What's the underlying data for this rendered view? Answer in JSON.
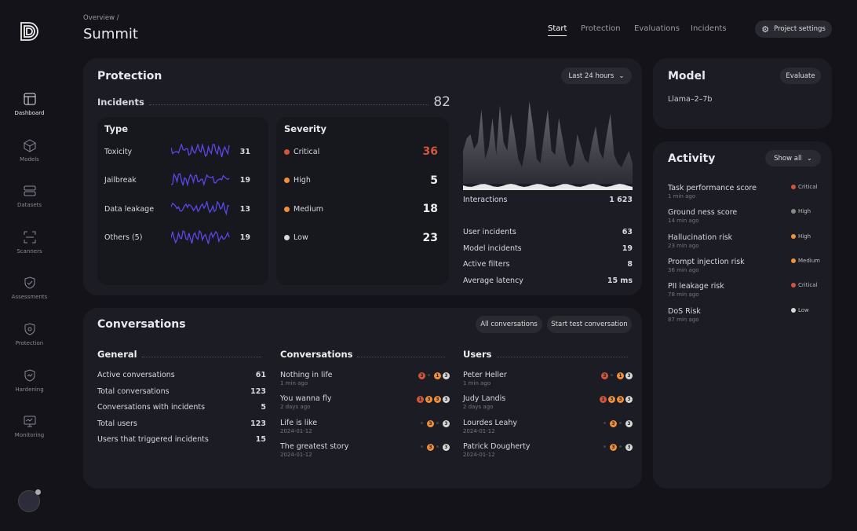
{
  "colors": {
    "critical": "#d0553a",
    "high": "#f0903a",
    "medium": "#f0903a",
    "low": "#d8d8d8",
    "grey": "#888"
  },
  "sidebar": {
    "items": [
      {
        "label": "Dashboard",
        "icon": "dashboard-icon"
      },
      {
        "label": "Models",
        "icon": "cube-icon"
      },
      {
        "label": "Datasets",
        "icon": "database-icon"
      },
      {
        "label": "Scanners",
        "icon": "scan-icon"
      },
      {
        "label": "Assessments",
        "icon": "shield-check-icon"
      },
      {
        "label": "Protection",
        "icon": "shield-icon"
      },
      {
        "label": "Hardening",
        "icon": "shield-bolt-icon"
      },
      {
        "label": "Monitoring",
        "icon": "monitor-icon"
      }
    ]
  },
  "header": {
    "breadcrumb": "Overview /",
    "title": "Summit",
    "tabs": [
      "Start",
      "Protection",
      "Evaluations",
      "Incidents"
    ],
    "settings": "Project settings"
  },
  "protection": {
    "title": "Protection",
    "range": "Last 24 hours",
    "incidents_label": "Incidents",
    "incidents_total": "82",
    "type_title": "Type",
    "types": [
      {
        "label": "Toxicity",
        "value": "31"
      },
      {
        "label": "Jailbreak",
        "value": "19"
      },
      {
        "label": "Data leakage",
        "value": "13"
      },
      {
        "label": "Others (5)",
        "value": "19"
      }
    ],
    "severity_title": "Severity",
    "severity": [
      {
        "label": "Critical",
        "value": "36",
        "level": "critical"
      },
      {
        "label": "High",
        "value": "5",
        "level": "high"
      },
      {
        "label": "Medium",
        "value": "18",
        "level": "medium"
      },
      {
        "label": "Low",
        "value": "23",
        "level": "low"
      }
    ],
    "interactions_label": "Interactions",
    "interactions": "1 623",
    "stats": [
      {
        "label": "User incidents",
        "value": "63"
      },
      {
        "label": "Model incidents",
        "value": "19"
      },
      {
        "label": "Active filters",
        "value": "8"
      },
      {
        "label": "Average latency",
        "value": "15 ms"
      }
    ],
    "interactions_series": [
      40,
      55,
      60,
      42,
      50,
      90,
      30,
      45,
      80,
      35,
      95,
      50,
      40,
      85,
      60,
      30,
      20,
      45,
      100,
      70,
      30,
      25,
      60,
      90,
      40,
      35,
      80,
      55,
      30,
      20,
      25,
      60,
      45,
      30,
      25,
      50,
      70,
      40,
      30,
      60,
      85,
      35,
      25,
      20,
      30,
      40,
      25
    ]
  },
  "model": {
    "title": "Model",
    "button": "Evaluate",
    "name": "Llama–2–7b"
  },
  "activity": {
    "title": "Activity",
    "button": "Show all",
    "items": [
      {
        "title": "Task performance score",
        "time": "1 min ago",
        "level": "critical",
        "label": "Critical"
      },
      {
        "title": "Ground ness score",
        "time": "14 min ago",
        "level": "grey",
        "label": "High"
      },
      {
        "title": "Hallucination risk",
        "time": "23 min ago",
        "level": "high",
        "label": "High"
      },
      {
        "title": "Prompt injection risk",
        "time": "36 min ago",
        "level": "medium",
        "label": "Medium"
      },
      {
        "title": "PII leakage risk",
        "time": "78 min ago",
        "level": "critical",
        "label": "Critical"
      },
      {
        "title": "DoS Risk",
        "time": "87 min ago",
        "level": "low",
        "label": "Low"
      }
    ]
  },
  "conversations": {
    "title": "Conversations",
    "all_button": "All conversations",
    "test_button": "Start test conversation",
    "general_title": "General",
    "general": [
      {
        "label": "Active conversations",
        "value": "61"
      },
      {
        "label": "Total conversations",
        "value": "123"
      },
      {
        "label": "Conversations with incidents",
        "value": "5"
      },
      {
        "label": "Total users",
        "value": "123"
      },
      {
        "label": "Users that triggered incidents",
        "value": "15"
      }
    ],
    "conv_title": "Conversations",
    "convs": [
      {
        "title": "Nothing in life",
        "time": "1 min ago",
        "badges": [
          [
            "3",
            "critical"
          ],
          [
            "",
            ""
          ],
          [
            "1",
            "high"
          ],
          [
            "3",
            "low"
          ]
        ]
      },
      {
        "title": "You wanna fly",
        "time": "2 days ago",
        "badges": [
          [
            "1",
            "critical"
          ],
          [
            "3",
            "high"
          ],
          [
            "3",
            "high"
          ],
          [
            "3",
            "low"
          ]
        ]
      },
      {
        "title": "Life is like",
        "time": "2024-01-12",
        "badges": [
          [
            "",
            ""
          ],
          [
            "3",
            "high"
          ],
          [
            "",
            ""
          ],
          [
            "3",
            "low"
          ]
        ]
      },
      {
        "title": "The greatest story",
        "time": "2024-01-12",
        "badges": [
          [
            "",
            ""
          ],
          [
            "3",
            "high"
          ],
          [
            "",
            ""
          ],
          [
            "3",
            "low"
          ]
        ]
      }
    ],
    "users_title": "Users",
    "users": [
      {
        "title": "Peter Heller",
        "time": "1 min ago",
        "badges": [
          [
            "3",
            "critical"
          ],
          [
            "",
            ""
          ],
          [
            "1",
            "high"
          ],
          [
            "3",
            "low"
          ]
        ]
      },
      {
        "title": "Judy Landis",
        "time": "2 days ago",
        "badges": [
          [
            "1",
            "critical"
          ],
          [
            "3",
            "high"
          ],
          [
            "3",
            "high"
          ],
          [
            "3",
            "low"
          ]
        ]
      },
      {
        "title": "Lourdes Leahy",
        "time": "2024-01-12",
        "badges": [
          [
            "",
            ""
          ],
          [
            "3",
            "high"
          ],
          [
            "",
            ""
          ],
          [
            "3",
            "low"
          ]
        ]
      },
      {
        "title": "Patrick Dougherty",
        "time": "2024-01-12",
        "badges": [
          [
            "",
            ""
          ],
          [
            "3",
            "high"
          ],
          [
            "",
            ""
          ],
          [
            "3",
            "low"
          ]
        ]
      }
    ]
  }
}
